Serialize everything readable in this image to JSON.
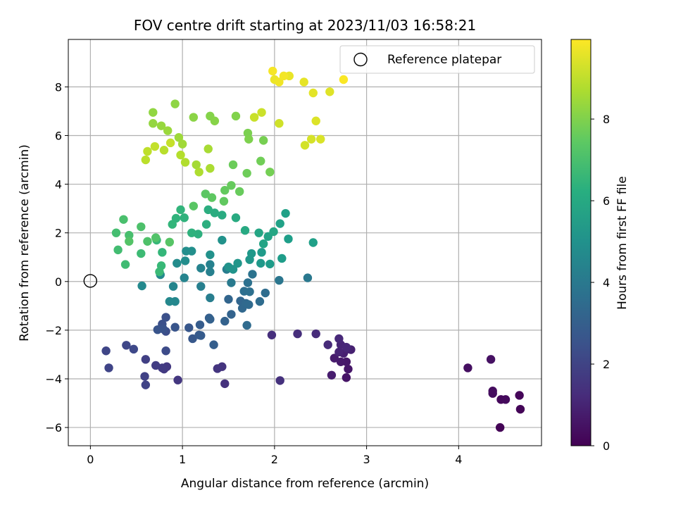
{
  "chart_data": {
    "type": "scatter",
    "title": "FOV centre drift starting at 2023/11/03 16:58:21",
    "xlabel": "Angular distance from reference (arcmin)",
    "ylabel": "Rotation from reference (arcmin)",
    "xlim": [
      -0.24,
      4.9
    ],
    "ylim": [
      -6.75,
      9.95
    ],
    "xticks": [
      0,
      1,
      2,
      3,
      4
    ],
    "yticks": [
      -6,
      -4,
      -2,
      0,
      2,
      4,
      6,
      8
    ],
    "grid": true,
    "legend": {
      "position": "top-right",
      "entries": [
        "Reference platepar"
      ]
    },
    "reference_point": {
      "label": "Reference platepar",
      "x": 0,
      "y": 0
    },
    "colorbar": {
      "label": "Hours from first FF file",
      "colormap": "viridis",
      "range": [
        0,
        9.95
      ],
      "ticks": [
        0,
        2,
        4,
        6,
        8
      ]
    },
    "points": [
      [
        4.45,
        -6.0,
        0.05
      ],
      [
        4.67,
        -5.25,
        0.1
      ],
      [
        4.66,
        -4.68,
        0.15
      ],
      [
        4.46,
        -4.85,
        0.2
      ],
      [
        4.51,
        -4.85,
        0.25
      ],
      [
        4.37,
        -4.5,
        0.3
      ],
      [
        4.37,
        -4.6,
        0.35
      ],
      [
        4.1,
        -3.55,
        0.4
      ],
      [
        4.35,
        -3.2,
        0.45
      ],
      [
        2.78,
        -3.95,
        0.55
      ],
      [
        2.8,
        -3.6,
        0.6
      ],
      [
        2.78,
        -3.3,
        0.65
      ],
      [
        2.72,
        -3.3,
        0.7
      ],
      [
        2.65,
        -3.15,
        0.75
      ],
      [
        2.62,
        -3.85,
        0.8
      ],
      [
        2.75,
        -2.95,
        0.85
      ],
      [
        2.83,
        -2.8,
        0.9
      ],
      [
        2.79,
        -2.78,
        0.95
      ],
      [
        2.7,
        -2.9,
        1.0
      ],
      [
        2.72,
        -2.6,
        1.05
      ],
      [
        2.78,
        -2.7,
        1.1
      ],
      [
        2.7,
        -2.35,
        1.15
      ],
      [
        2.58,
        -2.6,
        1.2
      ],
      [
        2.45,
        -2.15,
        1.25
      ],
      [
        2.25,
        -2.15,
        1.3
      ],
      [
        1.97,
        -2.2,
        1.35
      ],
      [
        2.06,
        -4.07,
        1.4
      ],
      [
        1.46,
        -4.2,
        1.45
      ],
      [
        1.43,
        -3.5,
        1.5
      ],
      [
        1.38,
        -3.58,
        1.55
      ],
      [
        0.95,
        -4.05,
        1.6
      ],
      [
        0.83,
        -3.5,
        1.65
      ],
      [
        0.8,
        -3.6,
        1.7
      ],
      [
        0.78,
        -3.55,
        1.75
      ],
      [
        0.71,
        -3.45,
        1.8
      ],
      [
        0.6,
        -3.2,
        1.9
      ],
      [
        0.59,
        -3.9,
        1.95
      ],
      [
        0.6,
        -4.25,
        2.0
      ],
      [
        0.2,
        -3.55,
        2.05
      ],
      [
        0.17,
        -2.85,
        2.1
      ],
      [
        0.39,
        -2.62,
        2.15
      ],
      [
        0.47,
        -2.78,
        2.2
      ],
      [
        0.82,
        -2.85,
        2.3
      ],
      [
        0.82,
        -2.05,
        2.4
      ],
      [
        0.78,
        -1.75,
        2.45
      ],
      [
        0.82,
        -1.47,
        2.5
      ],
      [
        0.79,
        -1.95,
        2.55
      ],
      [
        0.73,
        -1.98,
        2.6
      ],
      [
        0.92,
        -1.88,
        2.65
      ],
      [
        1.07,
        -1.9,
        2.7
      ],
      [
        1.11,
        -2.35,
        2.75
      ],
      [
        1.18,
        -2.2,
        2.8
      ],
      [
        1.2,
        -2.22,
        2.85
      ],
      [
        1.19,
        -1.78,
        2.9
      ],
      [
        1.34,
        -2.6,
        2.95
      ],
      [
        1.29,
        -1.5,
        3.0
      ],
      [
        1.3,
        -1.55,
        3.05
      ],
      [
        1.46,
        -1.63,
        3.1
      ],
      [
        1.53,
        -1.35,
        3.15
      ],
      [
        1.5,
        -0.73,
        3.2
      ],
      [
        1.63,
        -0.8,
        3.25
      ],
      [
        1.65,
        -1.1,
        3.3
      ],
      [
        1.69,
        -0.9,
        3.35
      ],
      [
        1.72,
        -0.95,
        3.4
      ],
      [
        1.7,
        -1.8,
        3.45
      ],
      [
        1.84,
        -0.82,
        3.5
      ],
      [
        1.9,
        -0.47,
        3.55
      ],
      [
        1.67,
        -0.4,
        3.6
      ],
      [
        1.73,
        -0.42,
        3.65
      ],
      [
        1.71,
        -0.05,
        3.7
      ],
      [
        1.76,
        0.3,
        3.8
      ],
      [
        2.05,
        0.05,
        3.9
      ],
      [
        2.36,
        0.15,
        4.0
      ],
      [
        1.53,
        -0.05,
        4.1
      ],
      [
        1.48,
        0.5,
        4.2
      ],
      [
        1.3,
        -0.67,
        4.25
      ],
      [
        1.2,
        -0.2,
        4.3
      ],
      [
        1.3,
        0.4,
        4.35
      ],
      [
        1.3,
        0.7,
        4.4
      ],
      [
        1.2,
        0.55,
        4.45
      ],
      [
        1.02,
        0.15,
        4.5
      ],
      [
        0.9,
        -0.2,
        4.55
      ],
      [
        0.92,
        -0.82,
        4.6
      ],
      [
        0.86,
        -0.82,
        4.65
      ],
      [
        0.56,
        -0.18,
        4.7
      ],
      [
        0.76,
        0.28,
        4.75
      ],
      [
        0.94,
        0.75,
        4.8
      ],
      [
        1.03,
        0.85,
        4.85
      ],
      [
        1.04,
        1.25,
        4.9
      ],
      [
        1.1,
        1.25,
        4.95
      ],
      [
        1.3,
        1.1,
        5.0
      ],
      [
        1.43,
        1.7,
        5.05
      ],
      [
        1.5,
        0.6,
        5.1
      ],
      [
        1.55,
        0.5,
        5.15
      ],
      [
        1.6,
        0.75,
        5.2
      ],
      [
        1.73,
        0.9,
        5.25
      ],
      [
        1.75,
        1.15,
        5.3
      ],
      [
        1.85,
        0.75,
        5.35
      ],
      [
        1.86,
        1.2,
        5.4
      ],
      [
        1.95,
        0.72,
        5.45
      ],
      [
        2.08,
        0.95,
        5.5
      ],
      [
        2.15,
        1.75,
        5.55
      ],
      [
        2.42,
        1.6,
        5.6
      ],
      [
        2.12,
        2.8,
        5.65
      ],
      [
        2.06,
        2.38,
        5.7
      ],
      [
        1.93,
        1.85,
        5.75
      ],
      [
        1.88,
        1.55,
        5.8
      ],
      [
        1.83,
        2.0,
        5.85
      ],
      [
        1.99,
        2.05,
        5.9
      ],
      [
        1.68,
        2.1,
        6.0
      ],
      [
        1.58,
        2.62,
        6.05
      ],
      [
        1.43,
        2.73,
        6.1
      ],
      [
        1.35,
        2.82,
        6.15
      ],
      [
        1.28,
        2.95,
        6.2
      ],
      [
        1.26,
        2.35,
        6.25
      ],
      [
        1.17,
        1.95,
        6.3
      ],
      [
        1.1,
        2.0,
        6.35
      ],
      [
        1.02,
        2.62,
        6.4
      ],
      [
        0.93,
        2.6,
        6.45
      ],
      [
        0.98,
        2.95,
        6.5
      ],
      [
        0.89,
        2.35,
        6.55
      ],
      [
        0.78,
        1.2,
        6.6
      ],
      [
        0.72,
        1.7,
        6.65
      ],
      [
        0.77,
        0.65,
        6.7
      ],
      [
        0.75,
        0.4,
        6.75
      ],
      [
        0.55,
        1.15,
        6.8
      ],
      [
        0.38,
        0.7,
        6.85
      ],
      [
        0.3,
        1.3,
        6.9
      ],
      [
        0.28,
        2.0,
        6.95
      ],
      [
        0.42,
        1.9,
        7.0
      ],
      [
        0.36,
        2.55,
        7.05
      ],
      [
        0.55,
        2.25,
        7.1
      ],
      [
        0.62,
        1.65,
        7.15
      ],
      [
        0.71,
        1.8,
        7.2
      ],
      [
        0.42,
        1.65,
        7.25
      ],
      [
        0.86,
        1.62,
        7.3
      ],
      [
        1.12,
        3.1,
        7.35
      ],
      [
        1.25,
        3.6,
        7.4
      ],
      [
        1.32,
        3.45,
        7.45
      ],
      [
        1.45,
        3.3,
        7.5
      ],
      [
        1.46,
        3.75,
        7.55
      ],
      [
        1.53,
        3.95,
        7.6
      ],
      [
        1.62,
        3.7,
        7.65
      ],
      [
        1.55,
        4.8,
        7.7
      ],
      [
        1.7,
        4.45,
        7.75
      ],
      [
        1.85,
        4.95,
        7.8
      ],
      [
        1.95,
        4.5,
        7.85
      ],
      [
        1.88,
        5.8,
        7.9
      ],
      [
        1.71,
        6.1,
        7.95
      ],
      [
        1.72,
        5.85,
        8.0
      ],
      [
        1.58,
        6.8,
        8.05
      ],
      [
        1.3,
        6.8,
        8.1
      ],
      [
        1.35,
        6.6,
        8.15
      ],
      [
        1.12,
        6.75,
        8.2
      ],
      [
        0.92,
        7.3,
        8.25
      ],
      [
        0.68,
        6.95,
        8.3
      ],
      [
        0.68,
        6.5,
        8.35
      ],
      [
        0.77,
        6.4,
        8.4
      ],
      [
        0.84,
        6.2,
        8.45
      ],
      [
        0.96,
        5.92,
        8.5
      ],
      [
        1.0,
        5.65,
        8.55
      ],
      [
        1.15,
        4.8,
        8.6
      ],
      [
        1.28,
        5.45,
        8.65
      ],
      [
        1.3,
        4.65,
        8.7
      ],
      [
        1.18,
        4.5,
        8.75
      ],
      [
        1.03,
        4.9,
        8.8
      ],
      [
        0.98,
        5.2,
        8.85
      ],
      [
        0.8,
        5.4,
        8.9
      ],
      [
        0.6,
        5.0,
        8.95
      ],
      [
        0.62,
        5.35,
        9.0
      ],
      [
        0.7,
        5.55,
        9.05
      ],
      [
        0.87,
        5.7,
        9.1
      ],
      [
        1.78,
        6.75,
        9.15
      ],
      [
        1.86,
        6.95,
        9.2
      ],
      [
        2.05,
        6.5,
        9.25
      ],
      [
        2.33,
        5.6,
        9.3
      ],
      [
        2.4,
        5.85,
        9.35
      ],
      [
        2.5,
        5.85,
        9.4
      ],
      [
        2.45,
        6.6,
        9.45
      ],
      [
        2.6,
        7.8,
        9.5
      ],
      [
        2.42,
        7.75,
        9.55
      ],
      [
        2.32,
        8.2,
        9.6
      ],
      [
        2.16,
        8.45,
        9.65
      ],
      [
        2.0,
        8.3,
        9.7
      ],
      [
        2.05,
        8.2,
        9.75
      ],
      [
        2.1,
        8.45,
        9.8
      ],
      [
        1.98,
        8.65,
        9.85
      ],
      [
        2.75,
        8.3,
        9.9
      ]
    ]
  }
}
